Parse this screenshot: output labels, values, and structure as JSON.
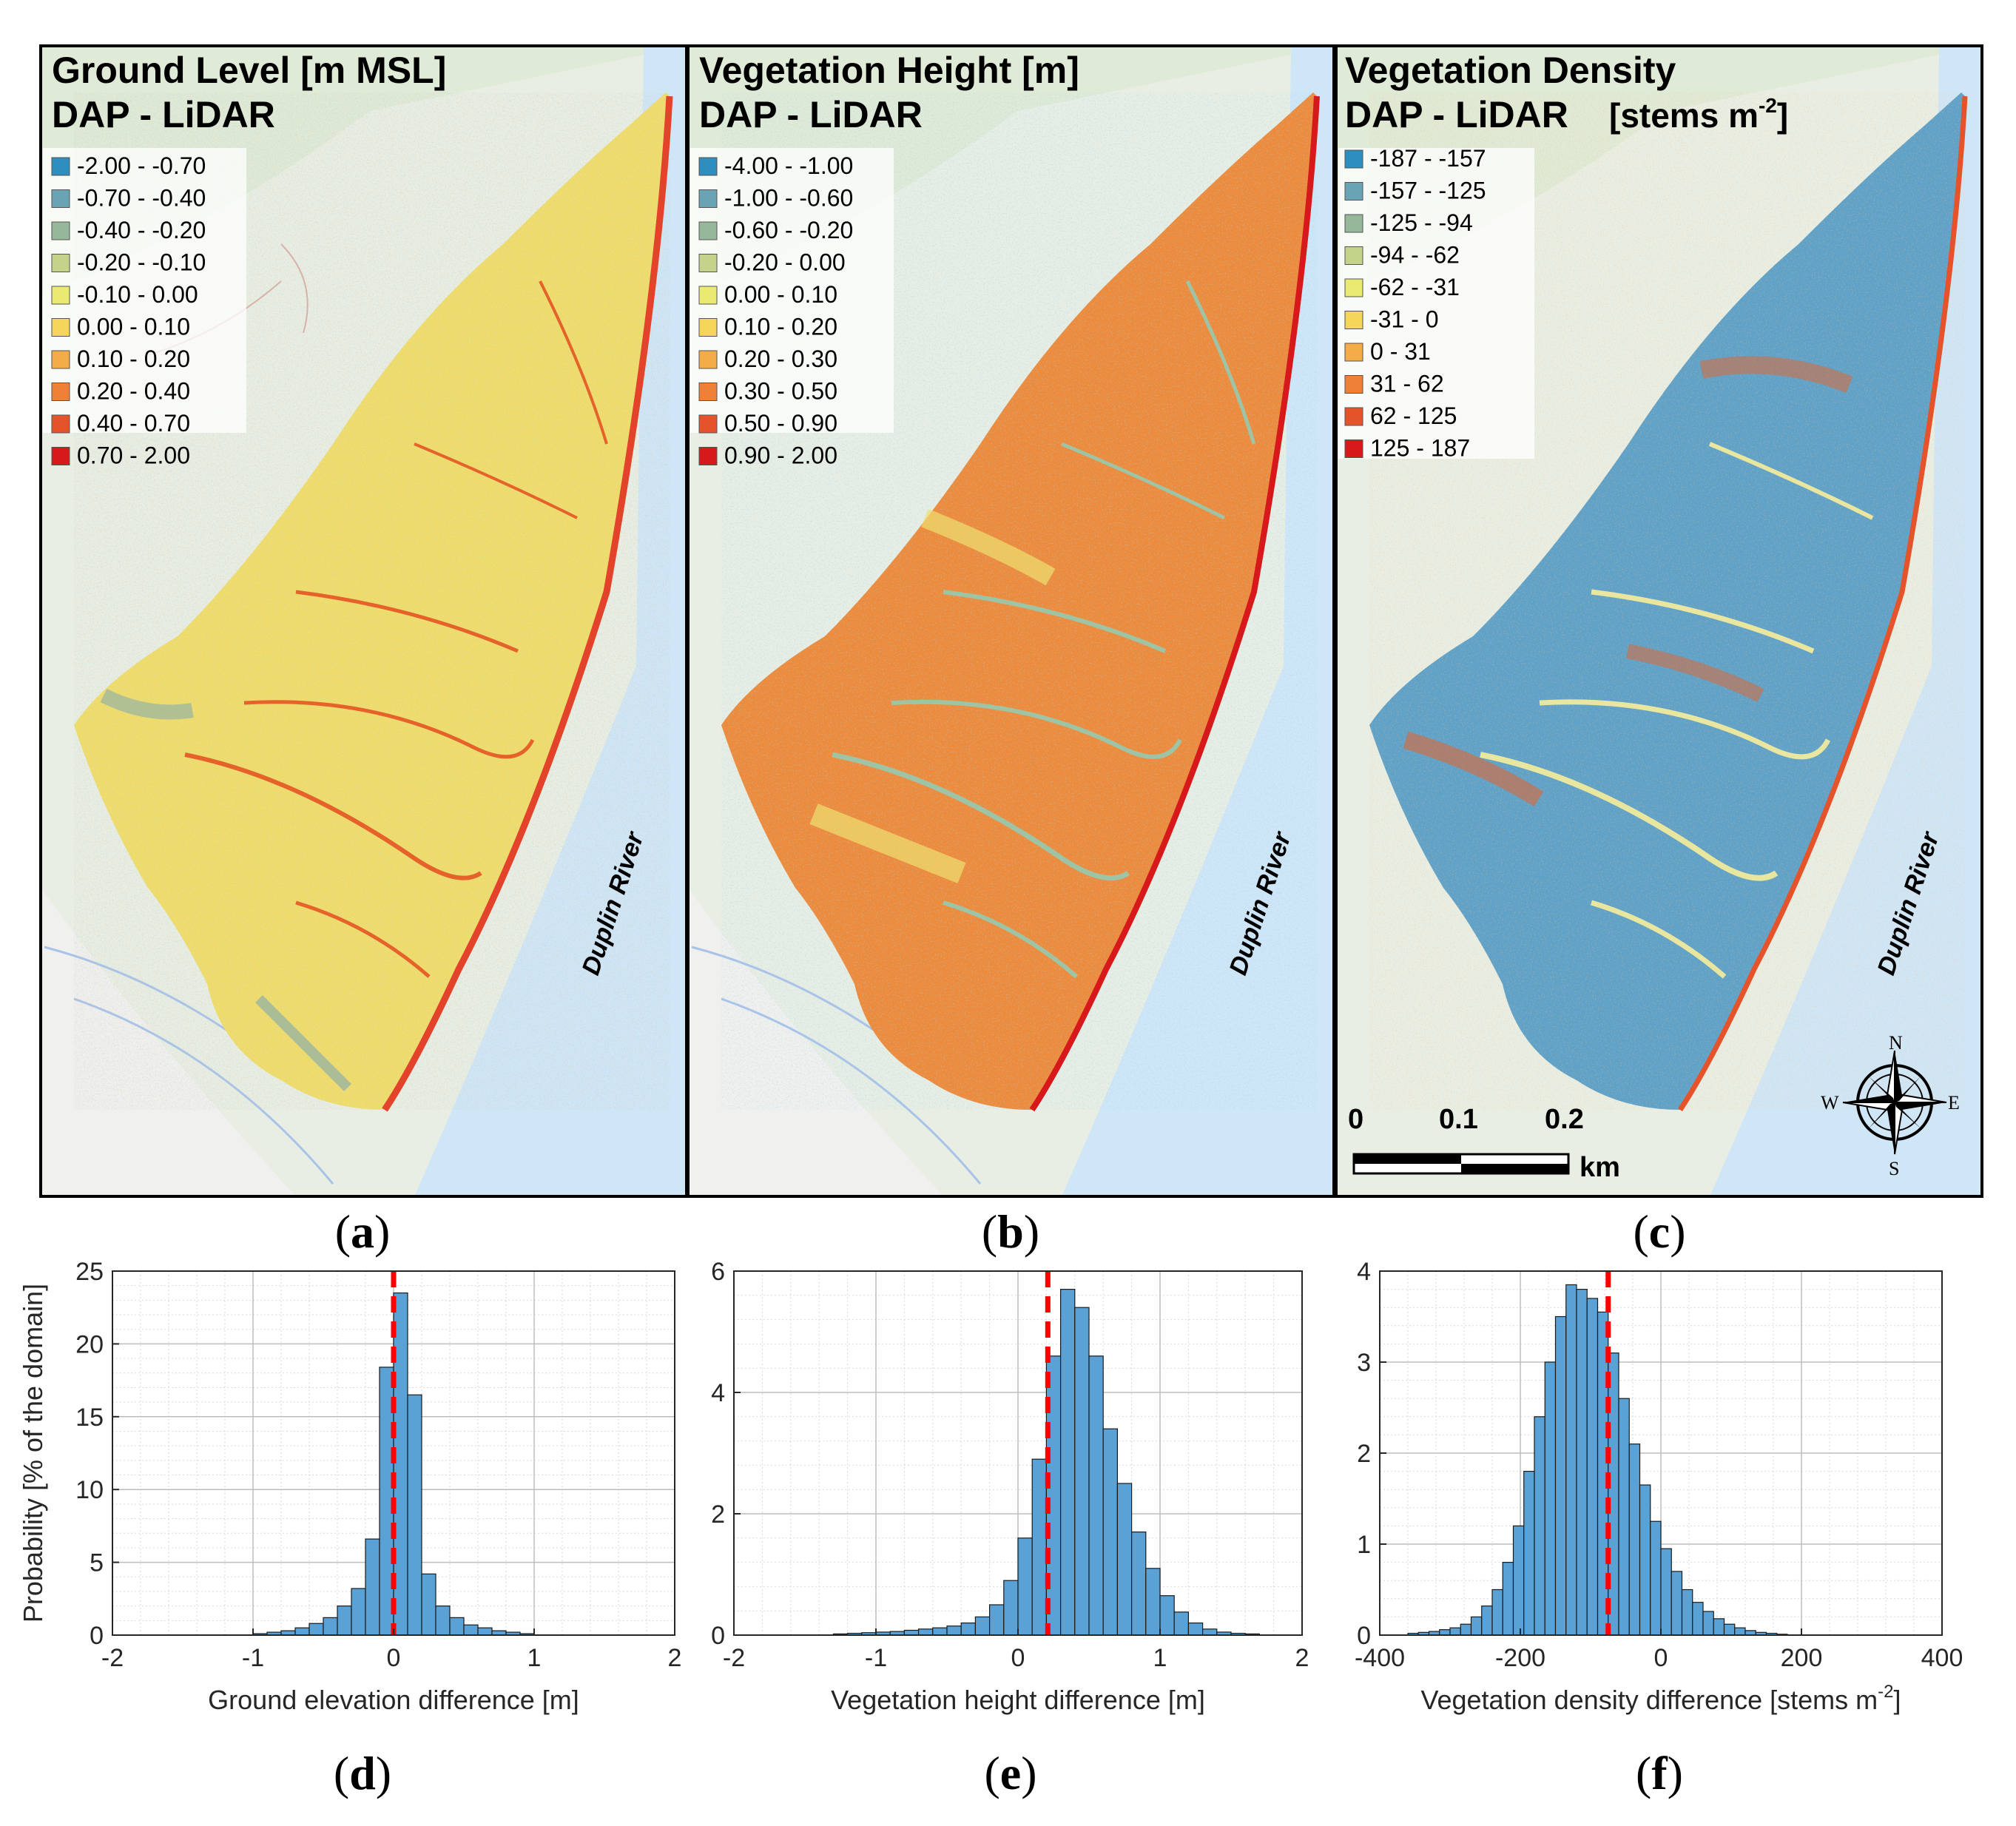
{
  "colors": {
    "scale10": [
      "#2f8ec0",
      "#6aa3b4",
      "#97b79b",
      "#c4d38a",
      "#eaea72",
      "#f5d55a",
      "#f4ac48",
      "#ef8038",
      "#e5532a",
      "#d7191c"
    ],
    "bar_fill": "#5aa2d6",
    "median": "#ff0000",
    "river": "#cfe6f7",
    "land": "#e6eee0"
  },
  "maps": [
    {
      "id": "a",
      "title_line1": "Ground Level [m MSL]",
      "title_line2": "DAP - LiDAR",
      "legend": [
        "-2.00 - -0.70",
        "-0.70 - -0.40",
        "-0.40 - -0.20",
        "-0.20 - -0.10",
        "-0.10 - 0.00",
        "0.00 - 0.10",
        "0.10 - 0.20",
        "0.20 - 0.40",
        "0.40 - 0.70",
        "0.70 - 2.00"
      ],
      "river_label": "Duplin River",
      "panel_label": "a"
    },
    {
      "id": "b",
      "title_line1": "Vegetation Height [m]",
      "title_line2": "DAP - LiDAR",
      "legend": [
        "-4.00 - -1.00",
        "-1.00 - -0.60",
        "-0.60 - -0.20",
        "-0.20 - 0.00",
        "0.00 - 0.10",
        "0.10 - 0.20",
        "0.20 - 0.30",
        "0.30 - 0.50",
        "0.50 - 0.90",
        "0.90 - 2.00"
      ],
      "river_label": "Duplin River",
      "panel_label": "b"
    },
    {
      "id": "c",
      "title_line1": "Vegetation Density",
      "title_line2": "DAP - LiDAR",
      "title_units": "[stems m",
      "title_units_sup": "-2",
      "title_units_close": "]",
      "legend": [
        "-187 - -157",
        "-157 - -125",
        "-125 - -94",
        "-94 - -62",
        "-62 - -31",
        "-31 - 0",
        "0 - 31",
        "31 - 62",
        "62 - 125",
        "125 - 187"
      ],
      "river_label": "Duplin River",
      "panel_label": "c",
      "scalebar": [
        "0",
        "0.1",
        "0.2"
      ],
      "scalebar_unit": "km",
      "compass": {
        "n": "N",
        "s": "S",
        "e": "E",
        "w": "W"
      }
    }
  ],
  "chart_data": [
    {
      "type": "bar",
      "panel_label": "d",
      "title": "",
      "xlabel": "Ground elevation difference [m]",
      "ylabel": "Probability [% of the domain]",
      "xlim": [
        -2,
        2
      ],
      "ylim": [
        0,
        25
      ],
      "xticks": [
        "-2",
        "-1",
        "0",
        "1",
        "2"
      ],
      "xtick_values": [
        -2,
        -1,
        0,
        1,
        2
      ],
      "yticks": [
        "0",
        "5",
        "10",
        "15",
        "20",
        "25"
      ],
      "ytick_values": [
        0,
        5,
        10,
        15,
        20,
        25
      ],
      "bin_start": -1.0,
      "bin_width": 0.1,
      "values": [
        0.1,
        0.2,
        0.3,
        0.5,
        0.8,
        1.2,
        2.0,
        3.2,
        6.6,
        18.4,
        23.5,
        16.5,
        4.2,
        2.0,
        1.2,
        0.7,
        0.5,
        0.3,
        0.2,
        0.1
      ],
      "median": 0.0,
      "grid": true
    },
    {
      "type": "bar",
      "panel_label": "e",
      "title": "",
      "xlabel": "Vegetation height difference [m]",
      "ylabel": "",
      "xlim": [
        -2,
        2
      ],
      "ylim": [
        0,
        6
      ],
      "xticks": [
        "-2",
        "-1",
        "0",
        "1",
        "2"
      ],
      "xtick_values": [
        -2,
        -1,
        0,
        1,
        2
      ],
      "yticks": [
        "0",
        "2",
        "4",
        "6"
      ],
      "ytick_values": [
        0,
        2,
        4,
        6
      ],
      "bin_start": -1.3,
      "bin_width": 0.1,
      "values": [
        0.02,
        0.03,
        0.04,
        0.05,
        0.06,
        0.08,
        0.1,
        0.12,
        0.15,
        0.2,
        0.3,
        0.5,
        0.9,
        1.6,
        2.9,
        4.6,
        5.7,
        5.4,
        4.6,
        3.4,
        2.5,
        1.7,
        1.1,
        0.65,
        0.38,
        0.2,
        0.1,
        0.05,
        0.03,
        0.02
      ],
      "median": 0.21,
      "grid": true
    },
    {
      "type": "bar",
      "panel_label": "f",
      "title": "",
      "xlabel": "Vegetation density difference [stems m",
      "xlabel_sup": "-2",
      "xlabel_close": "]",
      "ylabel": "",
      "xlim": [
        -400,
        400
      ],
      "ylim": [
        0,
        4
      ],
      "xticks": [
        "-400",
        "-200",
        "0",
        "200",
        "400"
      ],
      "xtick_values": [
        -400,
        -200,
        0,
        200,
        400
      ],
      "yticks": [
        "0",
        "1",
        "2",
        "3",
        "4"
      ],
      "ytick_values": [
        0,
        1,
        2,
        3,
        4
      ],
      "bin_start": -360,
      "bin_width": 15,
      "values": [
        0.02,
        0.03,
        0.04,
        0.06,
        0.08,
        0.12,
        0.2,
        0.32,
        0.5,
        0.8,
        1.2,
        1.8,
        2.4,
        3.0,
        3.5,
        3.85,
        3.8,
        3.7,
        3.55,
        3.1,
        2.6,
        2.1,
        1.65,
        1.25,
        0.95,
        0.7,
        0.5,
        0.36,
        0.26,
        0.18,
        0.12,
        0.08,
        0.05,
        0.03,
        0.02,
        0.01
      ],
      "median": -75,
      "grid": true
    }
  ]
}
